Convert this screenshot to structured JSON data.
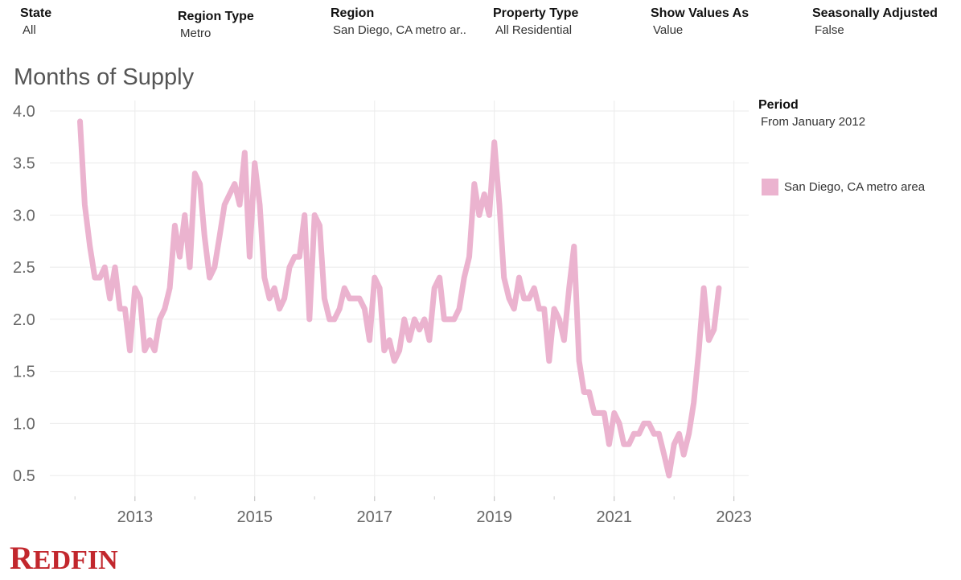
{
  "filters": [
    {
      "label": "State",
      "value": "All"
    },
    {
      "label": "Region Type",
      "value": "Metro"
    },
    {
      "label": "Region",
      "value": "San Diego, CA metro ar.."
    },
    {
      "label": "Property Type",
      "value": "All Residential"
    },
    {
      "label": "Show Values As",
      "value": "Value"
    },
    {
      "label": "Seasonally Adjusted",
      "value": "False"
    }
  ],
  "period": {
    "label": "Period",
    "value": "From January 2012"
  },
  "brand": {
    "logo_text": "REDFIN",
    "logo_color": "#c2272d"
  },
  "colors": {
    "series": "#ebb3cf",
    "grid": "#ebebeb",
    "text": "#666666"
  },
  "chart_data": {
    "type": "line",
    "title": "Months of Supply",
    "xlabel": "",
    "ylabel": "",
    "ylim": [
      0.3,
      4.1
    ],
    "xlim": [
      "2011-08-01",
      "2023-04-01"
    ],
    "yticks": [
      "0.5",
      "1.0",
      "1.5",
      "2.0",
      "2.5",
      "3.0",
      "3.5",
      "4.0"
    ],
    "xticks": [
      "2013",
      "2015",
      "2017",
      "2019",
      "2021",
      "2023"
    ],
    "grid": true,
    "legend_position": "right",
    "series": [
      {
        "name": "San Diego, CA metro area",
        "color": "#ebb3cf",
        "x": [
          "2012-02",
          "2012-03",
          "2012-04",
          "2012-05",
          "2012-06",
          "2012-07",
          "2012-08",
          "2012-09",
          "2012-10",
          "2012-11",
          "2012-12",
          "2013-01",
          "2013-02",
          "2013-03",
          "2013-04",
          "2013-05",
          "2013-06",
          "2013-07",
          "2013-08",
          "2013-09",
          "2013-10",
          "2013-11",
          "2013-12",
          "2014-01",
          "2014-02",
          "2014-03",
          "2014-04",
          "2014-05",
          "2014-06",
          "2014-07",
          "2014-08",
          "2014-09",
          "2014-10",
          "2014-11",
          "2014-12",
          "2015-01",
          "2015-02",
          "2015-03",
          "2015-04",
          "2015-05",
          "2015-06",
          "2015-07",
          "2015-08",
          "2015-09",
          "2015-10",
          "2015-11",
          "2015-12",
          "2016-01",
          "2016-02",
          "2016-03",
          "2016-04",
          "2016-05",
          "2016-06",
          "2016-07",
          "2016-08",
          "2016-09",
          "2016-10",
          "2016-11",
          "2016-12",
          "2017-01",
          "2017-02",
          "2017-03",
          "2017-04",
          "2017-05",
          "2017-06",
          "2017-07",
          "2017-08",
          "2017-09",
          "2017-10",
          "2017-11",
          "2017-12",
          "2018-01",
          "2018-02",
          "2018-03",
          "2018-04",
          "2018-05",
          "2018-06",
          "2018-07",
          "2018-08",
          "2018-09",
          "2018-10",
          "2018-11",
          "2018-12",
          "2019-01",
          "2019-02",
          "2019-03",
          "2019-04",
          "2019-05",
          "2019-06",
          "2019-07",
          "2019-08",
          "2019-09",
          "2019-10",
          "2019-11",
          "2019-12",
          "2020-01",
          "2020-02",
          "2020-03",
          "2020-04",
          "2020-05",
          "2020-06",
          "2020-07",
          "2020-08",
          "2020-09",
          "2020-10",
          "2020-11",
          "2020-12",
          "2021-01",
          "2021-02",
          "2021-03",
          "2021-04",
          "2021-05",
          "2021-06",
          "2021-07",
          "2021-08",
          "2021-09",
          "2021-10",
          "2021-11",
          "2021-12",
          "2022-01",
          "2022-02",
          "2022-03",
          "2022-04",
          "2022-05",
          "2022-06",
          "2022-07",
          "2022-08",
          "2022-09",
          "2022-10"
        ],
        "values": [
          3.9,
          3.1,
          2.7,
          2.4,
          2.4,
          2.5,
          2.2,
          2.5,
          2.1,
          2.1,
          1.7,
          2.3,
          2.2,
          1.7,
          1.8,
          1.7,
          2.0,
          2.1,
          2.3,
          2.9,
          2.6,
          3.0,
          2.5,
          3.4,
          3.3,
          2.8,
          2.4,
          2.5,
          2.8,
          3.1,
          3.2,
          3.3,
          3.1,
          3.6,
          2.6,
          3.5,
          3.1,
          2.4,
          2.2,
          2.3,
          2.1,
          2.2,
          2.5,
          2.6,
          2.6,
          3.0,
          2.0,
          3.0,
          2.9,
          2.2,
          2.0,
          2.0,
          2.1,
          2.3,
          2.2,
          2.2,
          2.2,
          2.1,
          1.8,
          2.4,
          2.3,
          1.7,
          1.8,
          1.6,
          1.7,
          2.0,
          1.8,
          2.0,
          1.9,
          2.0,
          1.8,
          2.3,
          2.4,
          2.0,
          2.0,
          2.0,
          2.1,
          2.4,
          2.6,
          3.3,
          3.0,
          3.2,
          3.0,
          3.7,
          3.1,
          2.4,
          2.2,
          2.1,
          2.4,
          2.2,
          2.2,
          2.3,
          2.1,
          2.1,
          1.6,
          2.1,
          2.0,
          1.8,
          2.3,
          2.7,
          1.6,
          1.3,
          1.3,
          1.1,
          1.1,
          1.1,
          0.8,
          1.1,
          1.0,
          0.8,
          0.8,
          0.9,
          0.9,
          1.0,
          1.0,
          0.9,
          0.9,
          0.7,
          0.5,
          0.8,
          0.9,
          0.7,
          0.9,
          1.2,
          1.7,
          2.3,
          1.8,
          1.9,
          2.3
        ]
      }
    ]
  }
}
